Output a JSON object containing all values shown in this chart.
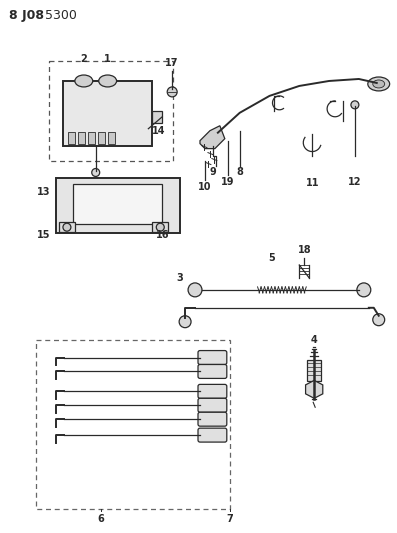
{
  "background_color": "#ffffff",
  "line_color": "#2a2a2a",
  "figsize": [
    3.97,
    5.33
  ],
  "dpi": 100,
  "title_bold": "8 J08",
  "title_normal": " 5300"
}
